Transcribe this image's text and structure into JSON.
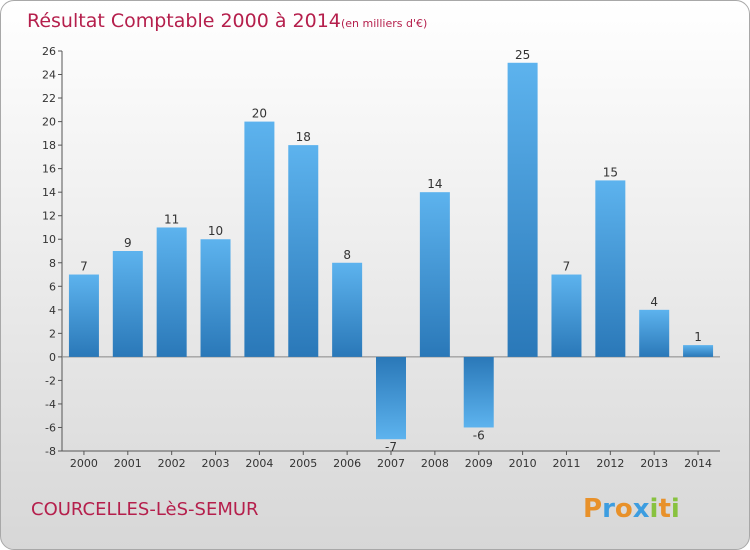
{
  "chart_data": {
    "type": "bar",
    "title": "Résultat Comptable 2000 à 2014",
    "subtitle": "(en milliers d'€)",
    "categories": [
      "2000",
      "2001",
      "2002",
      "2003",
      "2004",
      "2005",
      "2006",
      "2007",
      "2008",
      "2009",
      "2010",
      "2011",
      "2012",
      "2013",
      "2014"
    ],
    "values": [
      7,
      9,
      11,
      10,
      20,
      18,
      8,
      -7,
      14,
      -6,
      25,
      7,
      15,
      4,
      1
    ],
    "ylim": [
      -8,
      26
    ],
    "yticks": [
      -8,
      -6,
      -4,
      -2,
      0,
      2,
      4,
      6,
      8,
      10,
      12,
      14,
      16,
      18,
      20,
      22,
      24,
      26
    ],
    "xlabel": "",
    "ylabel": "",
    "grid": false,
    "colors": {
      "bar_light": "#5aaeea",
      "bar_dark": "#2a78b8",
      "title": "#b51f4c"
    }
  },
  "commune_name": "COURCELLES-LèS-SEMUR",
  "logo": {
    "letters": [
      "P",
      "r",
      "o",
      "x",
      "i",
      "t",
      "i"
    ],
    "colors": [
      "#e8912a",
      "#3d9de0",
      "#e8912a",
      "#3d9de0",
      "#88c23f",
      "#e8912a",
      "#88c23f"
    ]
  }
}
